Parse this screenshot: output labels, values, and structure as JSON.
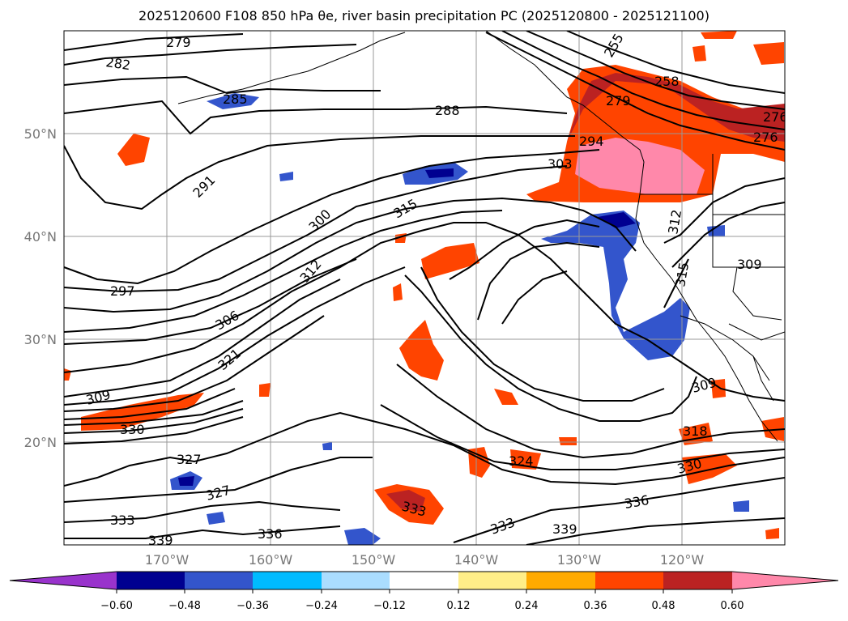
{
  "title": "2025120600 F108 850 hPa θe, river basin precipitation PC (2025120800 - 2025121100)",
  "lat_labels": [
    "50°N",
    "40°N",
    "30°N",
    "20°N"
  ],
  "lon_labels": [
    "170°W",
    "160°W",
    "150°W",
    "140°W",
    "130°W",
    "120°W"
  ],
  "contour_labels": [
    "279",
    "282",
    "285",
    "288",
    "291",
    "294",
    "297",
    "300",
    "303",
    "306",
    "309",
    "312",
    "315",
    "318",
    "321",
    "324",
    "327",
    "330",
    "333",
    "336",
    "339",
    "255",
    "258",
    "276"
  ],
  "colorbar": {
    "ticks": [
      "−0.60",
      "−0.48",
      "−0.36",
      "−0.24",
      "−0.12",
      "0.12",
      "0.24",
      "0.36",
      "0.48",
      "0.60"
    ],
    "colors": [
      "#9933cc",
      "#000090",
      "#3355cc",
      "#00bbff",
      "#aaddff",
      "#ffffff",
      "#ffee88",
      "#ffaa00",
      "#ff4400",
      "#bb2222",
      "#ff88aa"
    ]
  },
  "fill_colors": {
    "neg_strong": "#000090",
    "neg_mid": "#3355cc",
    "neg_light": "#00bbff",
    "pos_light": "#ffaa00",
    "pos_mid": "#ff4400",
    "pos_strong": "#bb2222",
    "pos_max": "#ff88aa"
  }
}
